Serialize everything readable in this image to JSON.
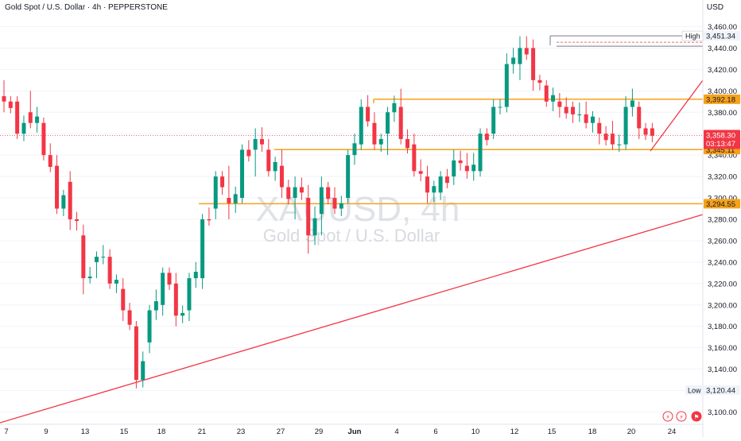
{
  "header": {
    "symbol_line": "Gold Spot / U.S. Dollar · 4h · PEPPERSTONE",
    "currency": "USD"
  },
  "watermark": {
    "ticker": "XAUUSD, 4h",
    "name": "Gold Spot / U.S. Dollar"
  },
  "colors": {
    "up": "#089981",
    "down": "#f23645",
    "level": "#f7a21b",
    "trendline": "#f23645",
    "axis_text": "#131722",
    "grid": "#f0f3fa"
  },
  "chart_data": {
    "type": "candlestick",
    "title": "Gold Spot / U.S. Dollar · 4h · PEPPERSTONE",
    "ylabel": "USD",
    "ylim": [
      3090,
      3470
    ],
    "y_ticks": [
      3100,
      3120,
      3140,
      3160,
      3180,
      3200,
      3220,
      3240,
      3260,
      3280,
      3300,
      3320,
      3340,
      3360,
      3380,
      3400,
      3420,
      3440,
      3460
    ],
    "y_tick_labels": [
      "3,100.00",
      "3,120.00",
      "3,140.00",
      "3,160.00",
      "3,180.00",
      "3,200.00",
      "3,220.00",
      "3,240.00",
      "3,260.00",
      "3,280.00",
      "3,300.00",
      "3,320.00",
      "3,340.00",
      "3,360.00",
      "3,380.00",
      "3,400.00",
      "3,420.00",
      "3,440.00",
      "3,460.00"
    ],
    "x_labels": [
      "7",
      "9",
      "13",
      "15",
      "18",
      "21",
      "23",
      "27",
      "29",
      "Jun",
      "4",
      "6",
      "10",
      "12",
      "15",
      "18",
      "20",
      "24"
    ],
    "levels": [
      {
        "value": 3392.18,
        "label": "3,392.18"
      },
      {
        "value": 3345.11,
        "label": "3,345.11"
      },
      {
        "value": 3294.55,
        "label": "3,294.55"
      }
    ],
    "high": {
      "label": "High",
      "value": 3451.34,
      "value_label": "3,451.34"
    },
    "low": {
      "label": "Low",
      "value": 3120.44,
      "value_label": "3,120.44"
    },
    "last_price": {
      "value": 3358.3,
      "label": "3,358.30",
      "countdown": "03:13:47"
    },
    "bounds_path": [
      {
        "t": 0,
        "o": 3395,
        "h": 3410,
        "l": 3380,
        "c": 3390
      },
      {
        "t": 2,
        "o": 3390,
        "h": 3395,
        "l": 3355,
        "c": 3360
      },
      {
        "t": 4,
        "o": 3380,
        "h": 3400,
        "l": 3365,
        "c": 3370
      },
      {
        "t": 6,
        "o": 3370,
        "h": 3375,
        "l": 3335,
        "c": 3340
      },
      {
        "t": 8,
        "o": 3330,
        "h": 3340,
        "l": 3285,
        "c": 3290
      },
      {
        "t": 10,
        "o": 3315,
        "h": 3325,
        "l": 3270,
        "c": 3280
      },
      {
        "t": 12,
        "o": 3265,
        "h": 3275,
        "l": 3210,
        "c": 3225
      },
      {
        "t": 14,
        "o": 3240,
        "h": 3250,
        "l": 3225,
        "c": 3245
      },
      {
        "t": 16,
        "o": 3245,
        "h": 3252,
        "l": 3215,
        "c": 3220
      },
      {
        "t": 18,
        "o": 3215,
        "h": 3225,
        "l": 3185,
        "c": 3195
      },
      {
        "t": 20,
        "o": 3180,
        "h": 3185,
        "l": 3122,
        "c": 3130
      },
      {
        "t": 22,
        "o": 3165,
        "h": 3200,
        "l": 3155,
        "c": 3195
      },
      {
        "t": 24,
        "o": 3200,
        "h": 3235,
        "l": 3190,
        "c": 3230
      },
      {
        "t": 26,
        "o": 3220,
        "h": 3230,
        "l": 3180,
        "c": 3190
      },
      {
        "t": 28,
        "o": 3195,
        "h": 3230,
        "l": 3185,
        "c": 3225
      },
      {
        "t": 30,
        "o": 3225,
        "h": 3285,
        "l": 3215,
        "c": 3280
      },
      {
        "t": 32,
        "o": 3290,
        "h": 3325,
        "l": 3280,
        "c": 3320
      },
      {
        "t": 34,
        "o": 3300,
        "h": 3330,
        "l": 3280,
        "c": 3295
      },
      {
        "t": 36,
        "o": 3300,
        "h": 3350,
        "l": 3295,
        "c": 3345
      },
      {
        "t": 38,
        "o": 3345,
        "h": 3365,
        "l": 3320,
        "c": 3355
      },
      {
        "t": 40,
        "o": 3345,
        "h": 3355,
        "l": 3320,
        "c": 3325
      },
      {
        "t": 42,
        "o": 3330,
        "h": 3345,
        "l": 3300,
        "c": 3310
      },
      {
        "t": 44,
        "o": 3300,
        "h": 3320,
        "l": 3280,
        "c": 3310
      },
      {
        "t": 46,
        "o": 3300,
        "h": 3312,
        "l": 3248,
        "c": 3265
      },
      {
        "t": 48,
        "o": 3285,
        "h": 3320,
        "l": 3265,
        "c": 3310
      },
      {
        "t": 50,
        "o": 3300,
        "h": 3310,
        "l": 3285,
        "c": 3290
      },
      {
        "t": 52,
        "o": 3300,
        "h": 3345,
        "l": 3295,
        "c": 3340
      },
      {
        "t": 54,
        "o": 3350,
        "h": 3392,
        "l": 3345,
        "c": 3385
      },
      {
        "t": 56,
        "o": 3370,
        "h": 3380,
        "l": 3345,
        "c": 3350
      },
      {
        "t": 58,
        "o": 3360,
        "h": 3385,
        "l": 3340,
        "c": 3380
      },
      {
        "t": 60,
        "o": 3385,
        "h": 3402,
        "l": 3350,
        "c": 3355
      },
      {
        "t": 62,
        "o": 3350,
        "h": 3360,
        "l": 3320,
        "c": 3325
      },
      {
        "t": 64,
        "o": 3320,
        "h": 3330,
        "l": 3295,
        "c": 3305
      },
      {
        "t": 66,
        "o": 3305,
        "h": 3325,
        "l": 3298,
        "c": 3320
      },
      {
        "t": 68,
        "o": 3320,
        "h": 3345,
        "l": 3312,
        "c": 3335
      },
      {
        "t": 70,
        "o": 3330,
        "h": 3342,
        "l": 3318,
        "c": 3325
      },
      {
        "t": 72,
        "o": 3325,
        "h": 3365,
        "l": 3320,
        "c": 3360
      },
      {
        "t": 74,
        "o": 3360,
        "h": 3392,
        "l": 3355,
        "c": 3385
      },
      {
        "t": 76,
        "o": 3385,
        "h": 3435,
        "l": 3380,
        "c": 3425
      },
      {
        "t": 78,
        "o": 3425,
        "h": 3451,
        "l": 3410,
        "c": 3440
      },
      {
        "t": 80,
        "o": 3440,
        "h": 3448,
        "l": 3400,
        "c": 3410
      },
      {
        "t": 82,
        "o": 3405,
        "h": 3410,
        "l": 3385,
        "c": 3390
      },
      {
        "t": 84,
        "o": 3390,
        "h": 3398,
        "l": 3375,
        "c": 3385
      },
      {
        "t": 86,
        "o": 3385,
        "h": 3390,
        "l": 3370,
        "c": 3378
      },
      {
        "t": 88,
        "o": 3378,
        "h": 3390,
        "l": 3365,
        "c": 3370
      },
      {
        "t": 90,
        "o": 3370,
        "h": 3375,
        "l": 3350,
        "c": 3360
      },
      {
        "t": 92,
        "o": 3360,
        "h": 3372,
        "l": 3345,
        "c": 3350
      },
      {
        "t": 94,
        "o": 3350,
        "h": 3395,
        "l": 3345,
        "c": 3385
      },
      {
        "t": 96,
        "o": 3385,
        "h": 3390,
        "l": 3355,
        "c": 3365
      },
      {
        "t": 98,
        "o": 3365,
        "h": 3370,
        "l": 3352,
        "c": 3358
      }
    ]
  },
  "icons": [
    "lightning-icon",
    "earnings-icon",
    "flag-icon"
  ]
}
